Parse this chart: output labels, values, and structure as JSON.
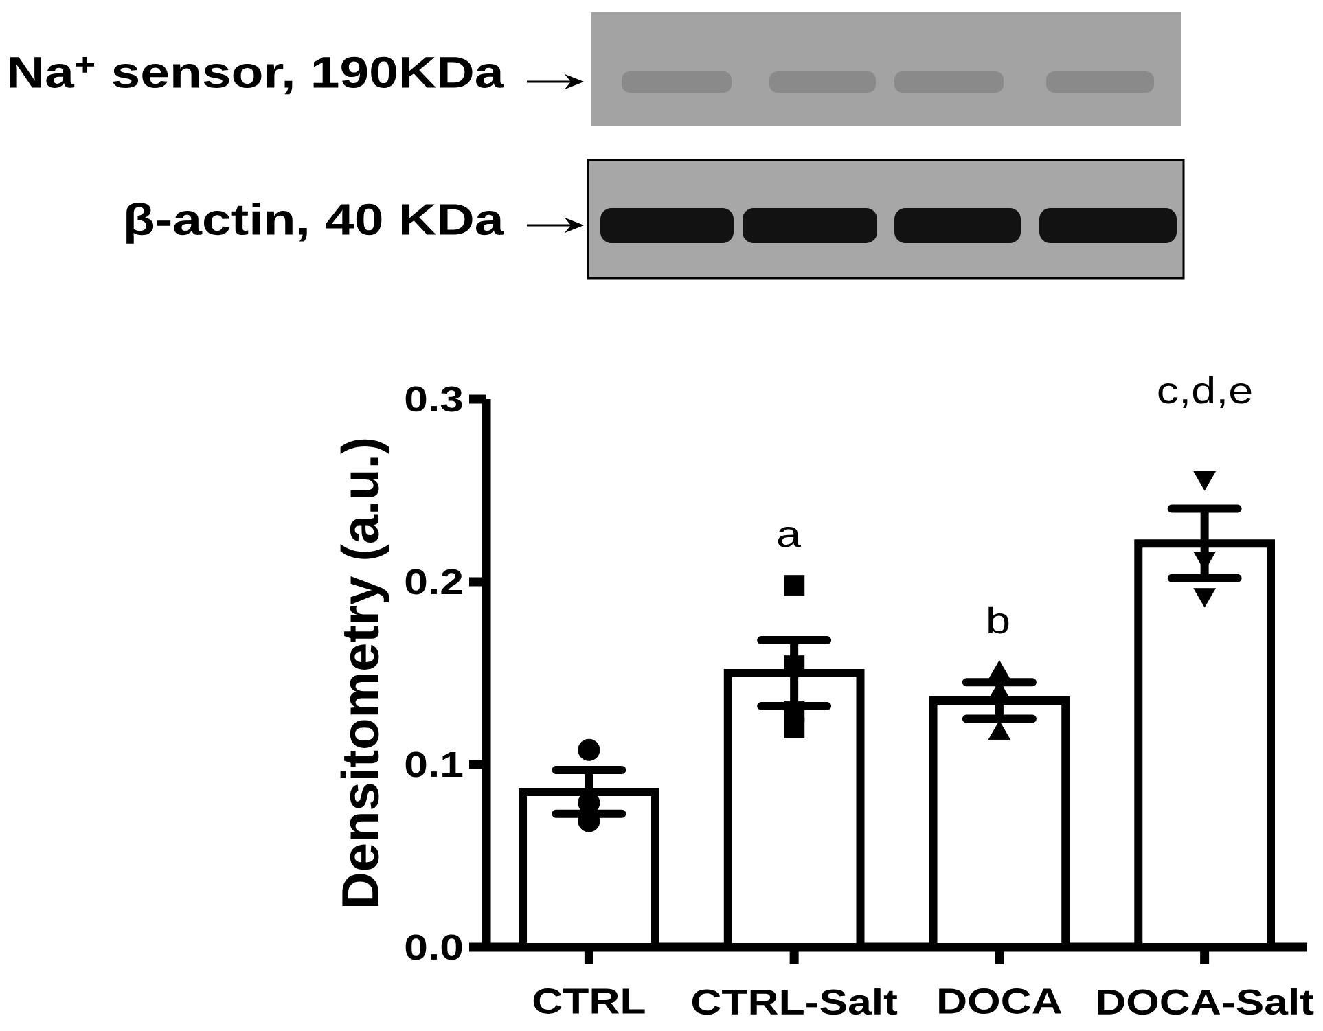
{
  "chart_data": {
    "type": "bar",
    "ylabel": "Densitometry (a.u.)",
    "categories": [
      "CTRL",
      "CTRL-Salt",
      "DOCA",
      "DOCA-Salt"
    ],
    "series": [
      {
        "color": "#ffffff",
        "values": [
          0.085,
          0.15,
          0.135,
          0.221
        ],
        "errors": [
          0.012,
          0.018,
          0.01,
          0.019
        ]
      },
      {
        "type": "scatter",
        "color": "#000000",
        "marker": "circle",
        "x": [
          "CTRL",
          "CTRL",
          "CTRL"
        ],
        "values": [
          0.108,
          0.069,
          0.079
        ]
      },
      {
        "type": "scatter",
        "color": "#000000",
        "marker": "square",
        "x": [
          "CTRL-Salt",
          "CTRL-Salt",
          "CTRL-Salt",
          "CTRL-Salt"
        ],
        "values": [
          0.198,
          0.154,
          0.12,
          0.129
        ]
      },
      {
        "type": "scatter",
        "color": "#000000",
        "marker": "triangle",
        "x": [
          "DOCA",
          "DOCA",
          "DOCA"
        ],
        "values": [
          0.15,
          0.139,
          0.117
        ]
      },
      {
        "type": "scatter",
        "color": "#000000",
        "marker": "triangle-down",
        "x": [
          "DOCA-Salt",
          "DOCA-Salt",
          "DOCA-Salt"
        ],
        "values": [
          0.257,
          0.213,
          0.193
        ]
      }
    ],
    "ylim": [
      0,
      0.3
    ],
    "yticks": [
      {
        "value": 0,
        "label": "0.0"
      },
      0.1,
      0.2,
      0.3
    ],
    "annotations": [
      "Na$^{+}$ sensor, 190KDa",
      "β-actin, 40 KDa",
      "a",
      "b",
      "c,d,e"
    ]
  }
}
